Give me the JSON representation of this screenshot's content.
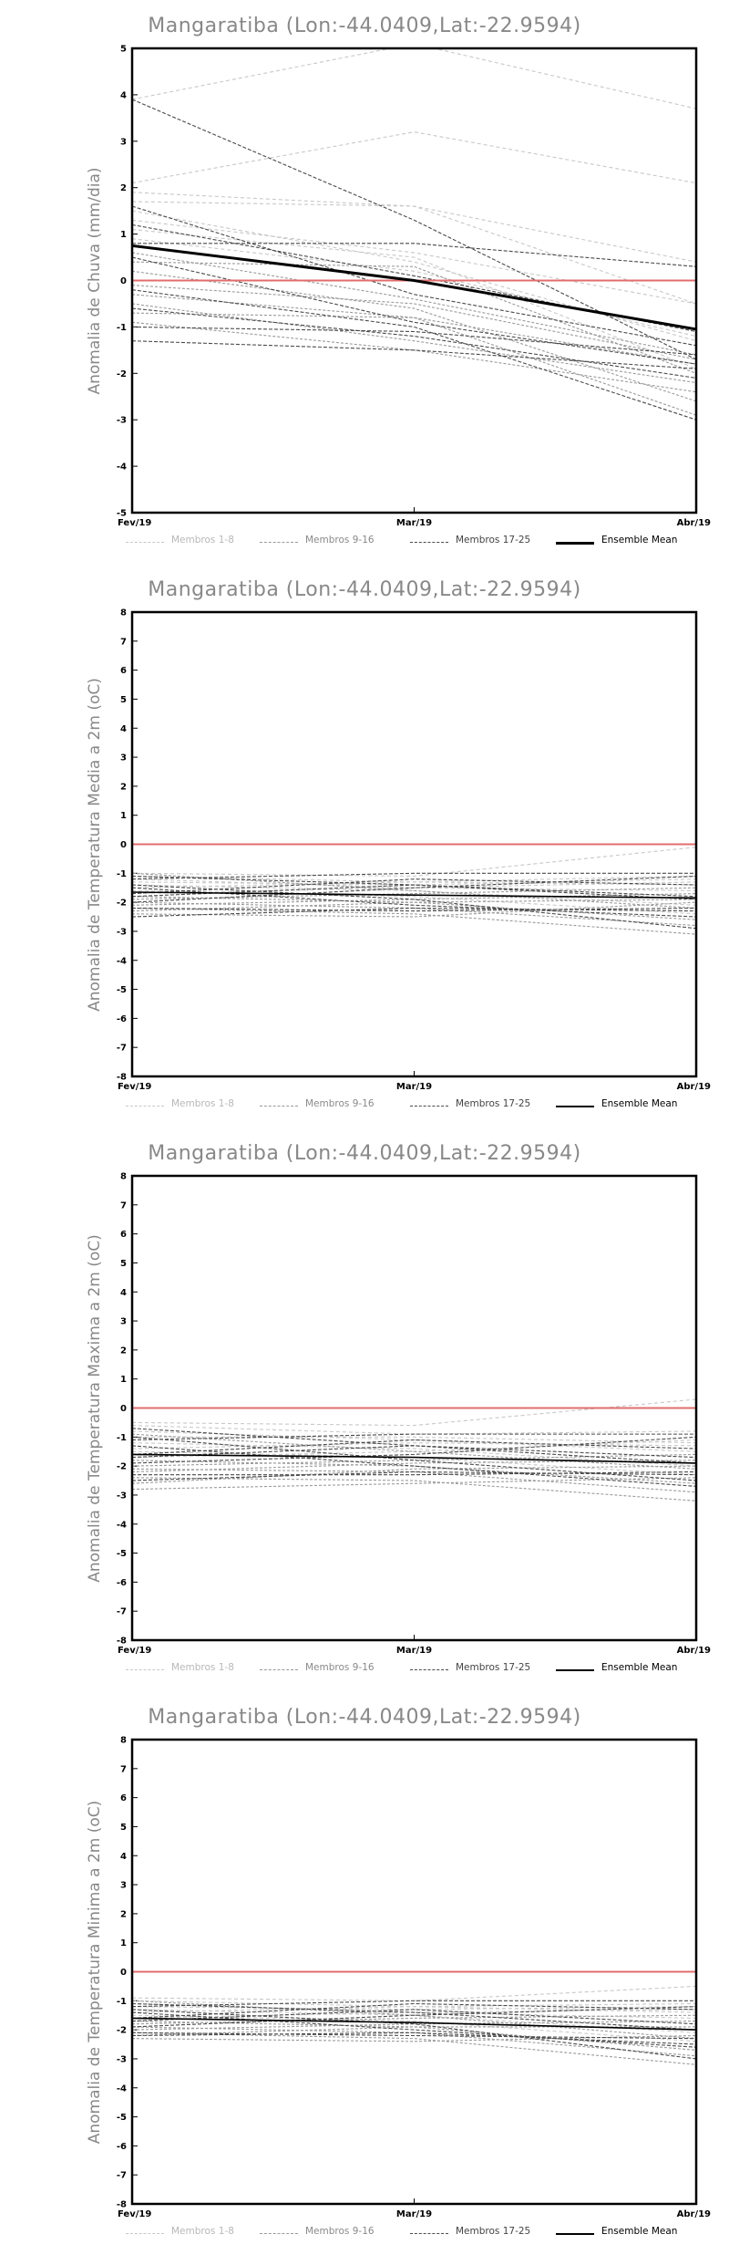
{
  "chart_data": [
    {
      "type": "line",
      "title": "Mangaratiba (Lon:-44.0409,Lat:-22.9594)",
      "ylabel": "Anomalia de Chuva (mm/dia)",
      "xlabel": "",
      "categories": [
        "Fev/19",
        "Mar/19",
        "Abr/19"
      ],
      "ylim": [
        -5,
        5
      ],
      "yticks": [
        -5,
        -4,
        -3,
        -2,
        -1,
        0,
        1,
        2,
        3,
        4,
        5
      ],
      "zero_line_color": "#e26d6d",
      "members": [
        [
          3.9,
          5.1,
          3.7
        ],
        [
          2.1,
          3.2,
          2.1
        ],
        [
          1.9,
          1.6,
          -0.5
        ],
        [
          1.7,
          1.6,
          0.4
        ],
        [
          1.5,
          0.4,
          -1.3
        ],
        [
          1.3,
          0.6,
          -0.5
        ],
        [
          1.1,
          0.5,
          -1.9
        ],
        [
          0.9,
          0.2,
          -1.2
        ],
        [
          0.6,
          -0.4,
          -1.6
        ],
        [
          0.4,
          0.3,
          -2.0
        ],
        [
          0.2,
          -0.6,
          -2.6
        ],
        [
          -0.1,
          -0.5,
          -1.7
        ],
        [
          -0.3,
          -0.8,
          -2.9
        ],
        [
          -0.5,
          -1.3,
          -2.2
        ],
        [
          -0.7,
          -0.8,
          -1.8
        ],
        [
          -0.9,
          -1.5,
          -2.4
        ],
        [
          -1.0,
          -1.1,
          -1.6
        ],
        [
          -1.3,
          -1.5,
          -1.9
        ],
        [
          3.9,
          1.3,
          -1.7
        ],
        [
          1.6,
          -0.3,
          -1.4
        ],
        [
          0.8,
          0.8,
          0.3
        ],
        [
          -0.2,
          -1.0,
          -3.0
        ],
        [
          0.5,
          -0.9,
          -1.8
        ],
        [
          1.2,
          0.1,
          -1.1
        ],
        [
          -0.6,
          -1.2,
          -2.1
        ]
      ],
      "series": [
        {
          "name": "Ensemble Mean",
          "values": [
            0.75,
            0.0,
            -1.05
          ]
        },
        {
          "name": "Zero",
          "values": [
            0,
            0,
            0
          ]
        }
      ],
      "legend": [
        "Membros 1-8",
        "Membros 9-16",
        "Membros 17-25",
        "Ensemble Mean"
      ],
      "legend_position": "bottom",
      "ensemble_bold": true
    },
    {
      "type": "line",
      "title": "Mangaratiba (Lon:-44.0409,Lat:-22.9594)",
      "ylabel": "Anomalia de Temperatura Media a 2m (oC)",
      "xlabel": "",
      "categories": [
        "Fev/19",
        "Mar/19",
        "Abr/19"
      ],
      "ylim": [
        -8,
        8
      ],
      "yticks": [
        -8,
        -7,
        -6,
        -5,
        -4,
        -3,
        -2,
        -1,
        0,
        1,
        2,
        3,
        4,
        5,
        6,
        7,
        8
      ],
      "zero_line_color": "#e26d6d",
      "members": [
        [
          -1.0,
          -1.1,
          -0.1
        ],
        [
          -1.1,
          -1.3,
          -1.1
        ],
        [
          -1.2,
          -1.5,
          -1.6
        ],
        [
          -1.3,
          -1.4,
          -1.2
        ],
        [
          -1.4,
          -1.6,
          -2.1
        ],
        [
          -1.5,
          -1.3,
          -1.4
        ],
        [
          -1.6,
          -1.8,
          -2.4
        ],
        [
          -1.7,
          -1.5,
          -1.3
        ],
        [
          -1.8,
          -2.0,
          -2.6
        ],
        [
          -1.9,
          -1.7,
          -1.5
        ],
        [
          -2.0,
          -2.2,
          -2.8
        ],
        [
          -2.1,
          -1.9,
          -1.7
        ],
        [
          -2.2,
          -2.4,
          -3.1
        ],
        [
          -2.3,
          -2.0,
          -1.9
        ],
        [
          -2.4,
          -2.5,
          -2.0
        ],
        [
          -1.0,
          -1.6,
          -2.2
        ],
        [
          -1.2,
          -1.0,
          -1.0
        ],
        [
          -1.5,
          -2.1,
          -2.5
        ],
        [
          -1.7,
          -1.2,
          -1.4
        ],
        [
          -2.0,
          -1.5,
          -1.1
        ],
        [
          -2.2,
          -2.3,
          -2.2
        ],
        [
          -1.4,
          -1.9,
          -2.9
        ],
        [
          -1.8,
          -1.4,
          -1.8
        ],
        [
          -2.5,
          -2.2,
          -2.3
        ],
        [
          -1.1,
          -1.4,
          -1.9
        ]
      ],
      "series": [
        {
          "name": "Ensemble Mean",
          "values": [
            -1.65,
            -1.75,
            -1.85
          ]
        },
        {
          "name": "Zero",
          "values": [
            0,
            0,
            0
          ]
        }
      ],
      "legend": [
        "Membros 1-8",
        "Membros 9-16",
        "Membros 17-25",
        "Ensemble Mean"
      ],
      "legend_position": "bottom",
      "ensemble_bold": false
    },
    {
      "type": "line",
      "title": "Mangaratiba (Lon:-44.0409,Lat:-22.9594)",
      "ylabel": "Anomalia de Temperatura Maxima a 2m (oC)",
      "xlabel": "",
      "categories": [
        "Fev/19",
        "Mar/19",
        "Abr/19"
      ],
      "ylim": [
        -8,
        8
      ],
      "yticks": [
        -8,
        -7,
        -6,
        -5,
        -4,
        -3,
        -2,
        -1,
        0,
        1,
        2,
        3,
        4,
        5,
        6,
        7,
        8
      ],
      "zero_line_color": "#e26d6d",
      "members": [
        [
          -0.5,
          -0.6,
          0.3
        ],
        [
          -0.6,
          -0.9,
          -0.8
        ],
        [
          -0.8,
          -1.1,
          -1.5
        ],
        [
          -1.0,
          -1.0,
          -1.2
        ],
        [
          -1.2,
          -1.4,
          -2.0
        ],
        [
          -1.4,
          -1.2,
          -1.3
        ],
        [
          -1.5,
          -1.7,
          -2.3
        ],
        [
          -1.7,
          -1.5,
          -1.1
        ],
        [
          -1.8,
          -2.0,
          -2.6
        ],
        [
          -2.0,
          -1.8,
          -1.6
        ],
        [
          -2.1,
          -2.2,
          -2.9
        ],
        [
          -2.2,
          -1.9,
          -1.8
        ],
        [
          -2.4,
          -2.5,
          -3.2
        ],
        [
          -2.6,
          -2.1,
          -2.0
        ],
        [
          -2.8,
          -2.6,
          -2.4
        ],
        [
          -0.9,
          -1.5,
          -2.1
        ],
        [
          -1.1,
          -0.9,
          -0.9
        ],
        [
          -1.3,
          -2.0,
          -2.7
        ],
        [
          -1.6,
          -1.1,
          -1.4
        ],
        [
          -1.9,
          -1.6,
          -1.0
        ],
        [
          -2.3,
          -2.3,
          -2.2
        ],
        [
          -1.0,
          -1.8,
          -2.5
        ],
        [
          -1.7,
          -1.3,
          -1.7
        ],
        [
          -2.5,
          -2.2,
          -2.3
        ],
        [
          -0.7,
          -1.3,
          -1.9
        ]
      ],
      "series": [
        {
          "name": "Ensemble Mean",
          "values": [
            -1.6,
            -1.7,
            -1.9
          ]
        },
        {
          "name": "Zero",
          "values": [
            0,
            0,
            0
          ]
        }
      ],
      "legend": [
        "Membros 1-8",
        "Membros 9-16",
        "Membros 17-25",
        "Ensemble Mean"
      ],
      "legend_position": "bottom",
      "ensemble_bold": false
    },
    {
      "type": "line",
      "title": "Mangaratiba (Lon:-44.0409,Lat:-22.9594)",
      "ylabel": "Anomalia de Temperatura Minima a 2m (oC)",
      "xlabel": "",
      "categories": [
        "Fev/19",
        "Mar/19",
        "Abr/19"
      ],
      "ylim": [
        -8,
        8
      ],
      "yticks": [
        -8,
        -7,
        -6,
        -5,
        -4,
        -3,
        -2,
        -1,
        0,
        1,
        2,
        3,
        4,
        5,
        6,
        7,
        8
      ],
      "zero_line_color": "#e26d6d",
      "members": [
        [
          -0.9,
          -1.0,
          -0.5
        ],
        [
          -1.0,
          -1.2,
          -1.1
        ],
        [
          -1.1,
          -1.4,
          -1.6
        ],
        [
          -1.2,
          -1.3,
          -1.2
        ],
        [
          -1.3,
          -1.5,
          -2.1
        ],
        [
          -1.4,
          -1.2,
          -1.4
        ],
        [
          -1.5,
          -1.7,
          -2.4
        ],
        [
          -1.6,
          -1.4,
          -1.3
        ],
        [
          -1.7,
          -1.9,
          -2.7
        ],
        [
          -1.8,
          -1.6,
          -1.5
        ],
        [
          -1.9,
          -2.1,
          -2.9
        ],
        [
          -2.0,
          -1.8,
          -1.7
        ],
        [
          -2.1,
          -2.3,
          -3.2
        ],
        [
          -2.2,
          -1.9,
          -1.9
        ],
        [
          -2.3,
          -2.4,
          -2.2
        ],
        [
          -1.0,
          -1.5,
          -2.3
        ],
        [
          -1.2,
          -1.0,
          -1.0
        ],
        [
          -1.4,
          -2.0,
          -2.6
        ],
        [
          -1.6,
          -1.1,
          -1.3
        ],
        [
          -1.9,
          -1.5,
          -1.2
        ],
        [
          -2.1,
          -2.2,
          -2.3
        ],
        [
          -1.3,
          -1.8,
          -3.0
        ],
        [
          -1.7,
          -1.3,
          -1.8
        ],
        [
          -2.2,
          -2.1,
          -2.5
        ],
        [
          -1.1,
          -1.4,
          -2.0
        ]
      ],
      "series": [
        {
          "name": "Ensemble Mean",
          "values": [
            -1.6,
            -1.75,
            -2.0
          ]
        },
        {
          "name": "Zero",
          "values": [
            0,
            0,
            0
          ]
        }
      ],
      "legend": [
        "Membros 1-8",
        "Membros 9-16",
        "Membros 17-25",
        "Ensemble Mean"
      ],
      "legend_position": "bottom",
      "ensemble_bold": false
    }
  ]
}
